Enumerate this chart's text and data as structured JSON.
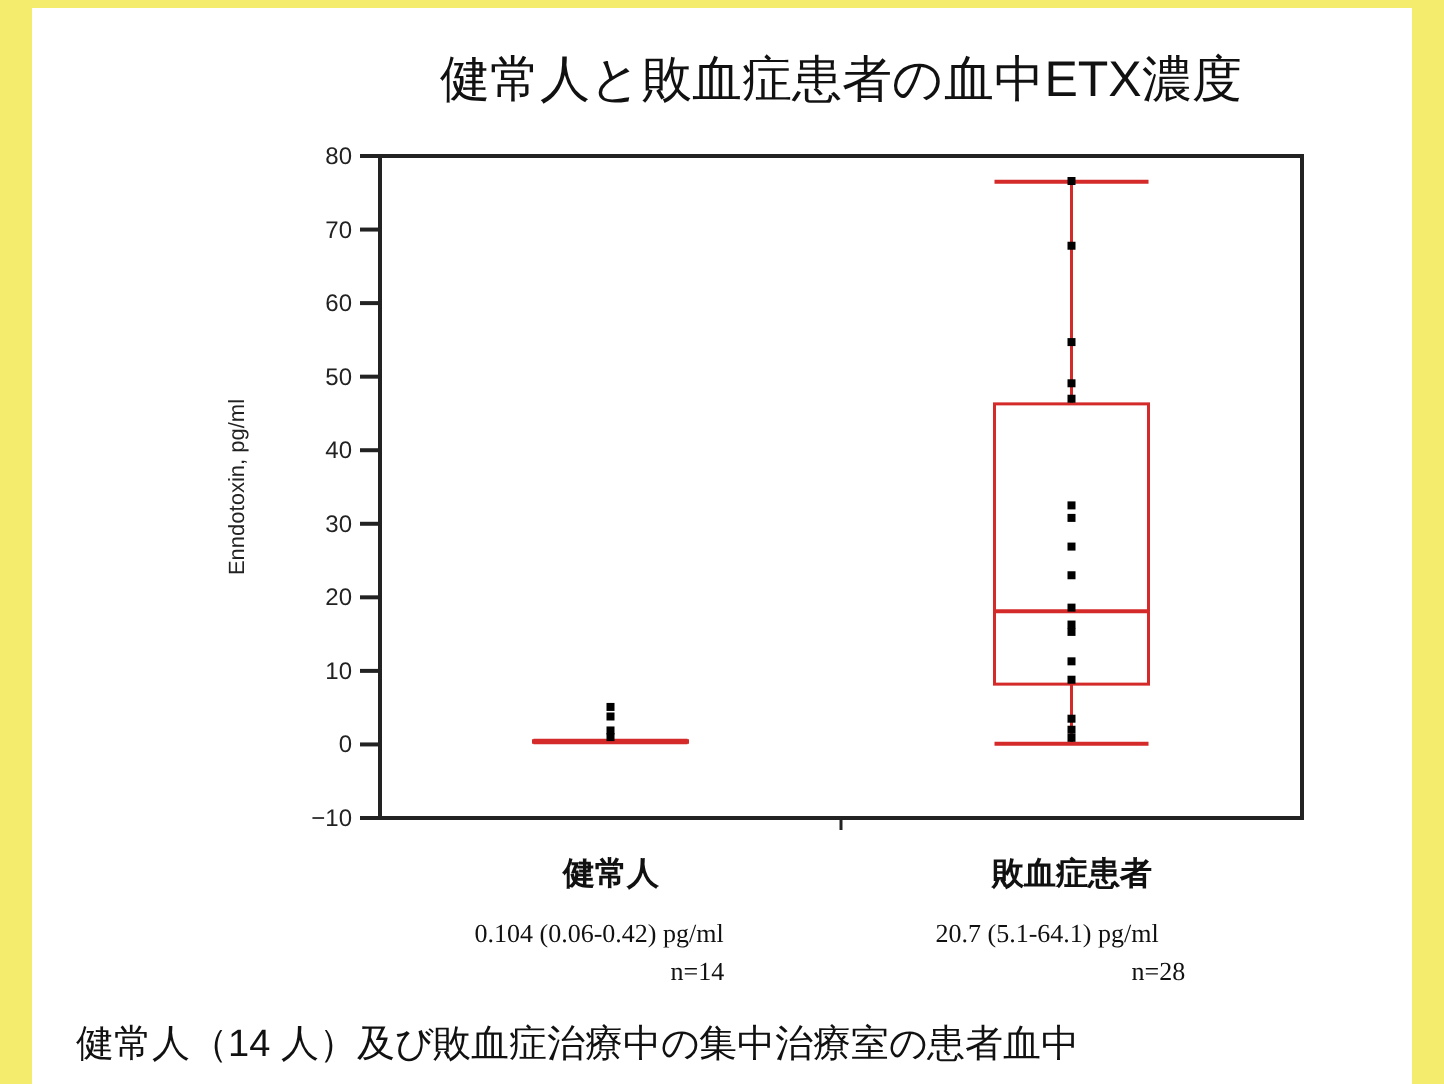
{
  "chart_data": {
    "type": "box",
    "title": "健常人と敗血症患者の血中ETX濃度",
    "ylabel": "Enndotoxin, pg/ml",
    "categories": [
      "健常人",
      "敗血症患者"
    ],
    "color": "#d42a2a",
    "boxes": [
      {
        "low": 0.3,
        "q1": 0.3,
        "median": 0.4,
        "q3": 0.5,
        "high": 0.5
      },
      {
        "low": 0.1,
        "q1": 8.2,
        "median": 18.1,
        "q3": 46.3,
        "high": 76.5
      }
    ],
    "series": [
      {
        "type": "scatter",
        "color": "#000000",
        "marker": "square",
        "x": [
          "健常人",
          "健常人",
          "健常人",
          "健常人"
        ],
        "values": [
          5.1,
          3.8,
          1.9,
          1.0
        ]
      },
      {
        "type": "scatter",
        "color": "#000000",
        "marker": "square",
        "x": [
          "敗血症患者",
          "敗血症患者",
          "敗血症患者",
          "敗血症患者",
          "敗血症患者",
          "敗血症患者",
          "敗血症患者",
          "敗血症患者",
          "敗血症患者",
          "敗血症患者",
          "敗血症患者",
          "敗血症患者",
          "敗血症患者",
          "敗血症患者",
          "敗血症患者",
          "敗血症患者",
          "敗血症患者"
        ],
        "values": [
          76.6,
          67.8,
          54.7,
          49.1,
          47.0,
          32.5,
          30.8,
          26.9,
          23.0,
          18.6,
          16.3,
          15.3,
          11.3,
          8.8,
          3.5,
          2.0,
          0.9
        ]
      }
    ],
    "ylim": [
      -10,
      80
    ],
    "yticks": [
      -10,
      0,
      10,
      20,
      30,
      40,
      50,
      60,
      70,
      80
    ],
    "annotations": [
      "0.104 (0.06-0.42) pg/ml",
      "n=14",
      "20.7 (5.1-64.1) pg/ml",
      "n=28",
      "健常人（14 人）及び敗血症治療中の集中治療室の患者血中"
    ]
  }
}
